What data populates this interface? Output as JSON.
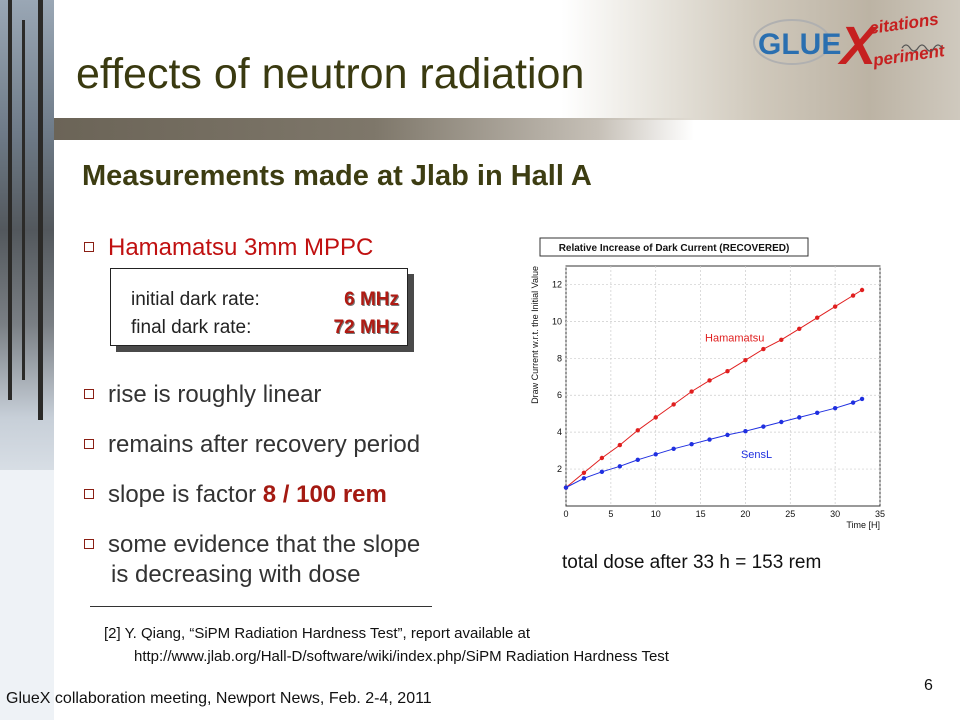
{
  "title": "effects of neutron radiation",
  "logo": {
    "main": "GLUE",
    "x": "X",
    "sup": "citations",
    "sub": "periment"
  },
  "subtitle": "Measurements made at Jlab in Hall A",
  "bullets": {
    "b1": "Hamamatsu 3mm MPPC",
    "b2": "rise is roughly linear",
    "b3": "remains after recovery period",
    "b4_prefix": "slope is factor",
    "b4_value": "8 / 100 rem",
    "b5_line1": "some evidence that the slope",
    "b5_line2": "is decreasing with dose"
  },
  "rates": {
    "initial_label": "initial dark rate:",
    "initial_value": "6 MHz",
    "final_label": "final dark rate:",
    "final_value": "72 MHz"
  },
  "chart_data": {
    "type": "line",
    "title": "Relative Increase of Dark Current (RECOVERED)",
    "xlabel": "Time [H]",
    "ylabel": "Draw Current w.r.t. the Initial Value",
    "xlim": [
      0,
      35
    ],
    "ylim": [
      0,
      13
    ],
    "xticks": [
      0,
      5,
      10,
      15,
      20,
      25,
      30,
      35
    ],
    "yticks": [
      2,
      4,
      6,
      8,
      10,
      12
    ],
    "grid": true,
    "series": [
      {
        "name": "Hamamatsu",
        "color": "#e01f1f",
        "x": [
          0,
          2,
          4,
          6,
          8,
          10,
          12,
          14,
          16,
          18,
          20,
          22,
          24,
          26,
          28,
          30,
          32,
          33
        ],
        "y": [
          1.0,
          1.8,
          2.6,
          3.3,
          4.1,
          4.8,
          5.5,
          6.2,
          6.8,
          7.3,
          7.9,
          8.5,
          9.0,
          9.6,
          10.2,
          10.8,
          11.4,
          11.7
        ]
      },
      {
        "name": "SensL",
        "color": "#1f2fe0",
        "x": [
          0,
          2,
          4,
          6,
          8,
          10,
          12,
          14,
          16,
          18,
          20,
          22,
          24,
          26,
          28,
          30,
          32,
          33
        ],
        "y": [
          1.0,
          1.5,
          1.85,
          2.15,
          2.5,
          2.8,
          3.1,
          3.35,
          3.6,
          3.85,
          4.05,
          4.3,
          4.55,
          4.8,
          5.05,
          5.3,
          5.6,
          5.8
        ]
      }
    ]
  },
  "chart_caption": "total dose after 33 h = 153 rem",
  "reference_line1": "[2] Y. Qiang, “SiPM Radiation Hardness Test”, report available at",
  "reference_line2": "http://www.jlab.org/Hall-D/software/wiki/index.php/SiPM Radiation Hardness Test",
  "footer": "GlueX collaboration meeting, Newport News, Feb. 2-4, 2011",
  "page_number": "6"
}
